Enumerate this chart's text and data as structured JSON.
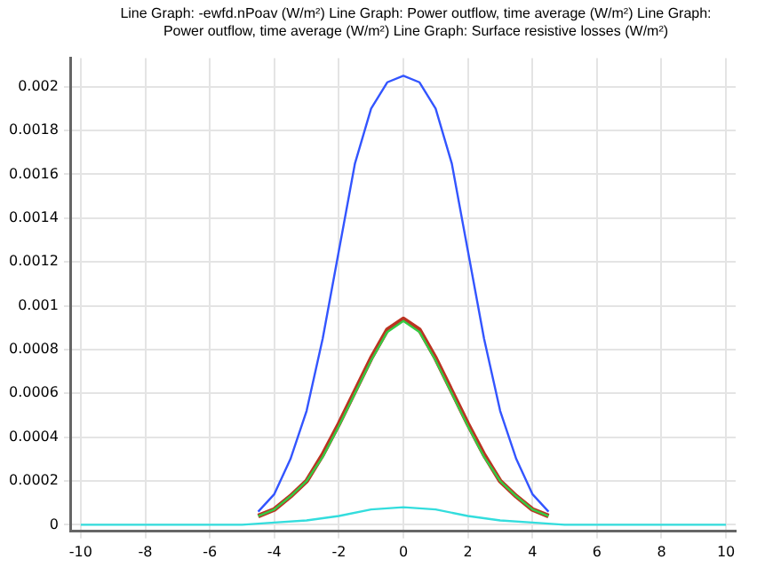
{
  "chart_data": {
    "type": "line",
    "title": "Line Graph: -ewfd.nPoav (W/m²)  Line Graph: Power outflow, time average (W/m²)  Line Graph: Power outflow, time average (W/m²)  Line Graph: Surface resistive losses (W/m²)",
    "series": [
      {
        "color": "#3355ff",
        "x": [
          -4.5,
          -4,
          -3.5,
          -3,
          -2.5,
          -2,
          -1.5,
          -1,
          -0.5,
          0,
          0.5,
          1,
          1.5,
          2,
          2.5,
          3,
          3.5,
          4,
          4.5
        ],
        "values": [
          6e-05,
          0.00014,
          0.0003,
          0.00052,
          0.00085,
          0.00125,
          0.00165,
          0.0019,
          0.00202,
          0.00205,
          0.00202,
          0.0019,
          0.00165,
          0.00125,
          0.00085,
          0.00052,
          0.0003,
          0.00014,
          6e-05
        ]
      },
      {
        "color": "#bb3322",
        "x": [
          -4.5,
          -4,
          -3.5,
          -3,
          -2.5,
          -2,
          -1.5,
          -1,
          -0.5,
          0,
          0.5,
          1,
          1.5,
          2,
          2.5,
          3,
          3.5,
          4,
          4.5
        ],
        "values": [
          4e-05,
          7e-05,
          0.00013,
          0.0002,
          0.00032,
          0.00046,
          0.00061,
          0.00076,
          0.00089,
          0.00094,
          0.00089,
          0.00076,
          0.00061,
          0.00046,
          0.00032,
          0.0002,
          0.00013,
          7e-05,
          4e-05
        ]
      },
      {
        "color": "#33cc44",
        "x": [
          -4.5,
          -4,
          -3.5,
          -3,
          -2.5,
          -2,
          -1.5,
          -1,
          -0.5,
          0,
          0.5,
          1,
          1.5,
          2,
          2.5,
          3,
          3.5,
          4,
          4.5
        ],
        "values": [
          4e-05,
          7e-05,
          0.00013,
          0.0002,
          0.00031,
          0.00045,
          0.0006,
          0.00075,
          0.00088,
          0.00093,
          0.00088,
          0.00075,
          0.0006,
          0.00045,
          0.00031,
          0.0002,
          0.00013,
          7e-05,
          4e-05
        ]
      },
      {
        "color": "#33dddd",
        "x": [
          -10,
          -5,
          -4,
          -3,
          -2,
          -1,
          0,
          1,
          2,
          3,
          4,
          5,
          10
        ],
        "values": [
          0,
          0,
          1e-05,
          2e-05,
          4e-05,
          7e-05,
          8e-05,
          7e-05,
          4e-05,
          2e-05,
          1e-05,
          0,
          0
        ]
      }
    ],
    "xlim": [
      -10.3,
      10.3
    ],
    "xticks": [
      -10,
      -8,
      -6,
      -4,
      -2,
      0,
      2,
      4,
      6,
      8,
      10
    ],
    "ylim": [
      -3e-05,
      0.00213
    ],
    "yticks": [
      0,
      0.0002,
      0.0004,
      0.0006,
      0.0008,
      0.001,
      0.0012,
      0.0014,
      0.0016,
      0.0018,
      0.002
    ],
    "grid": true,
    "legend": false,
    "marker": "none",
    "line_style": "solid"
  }
}
